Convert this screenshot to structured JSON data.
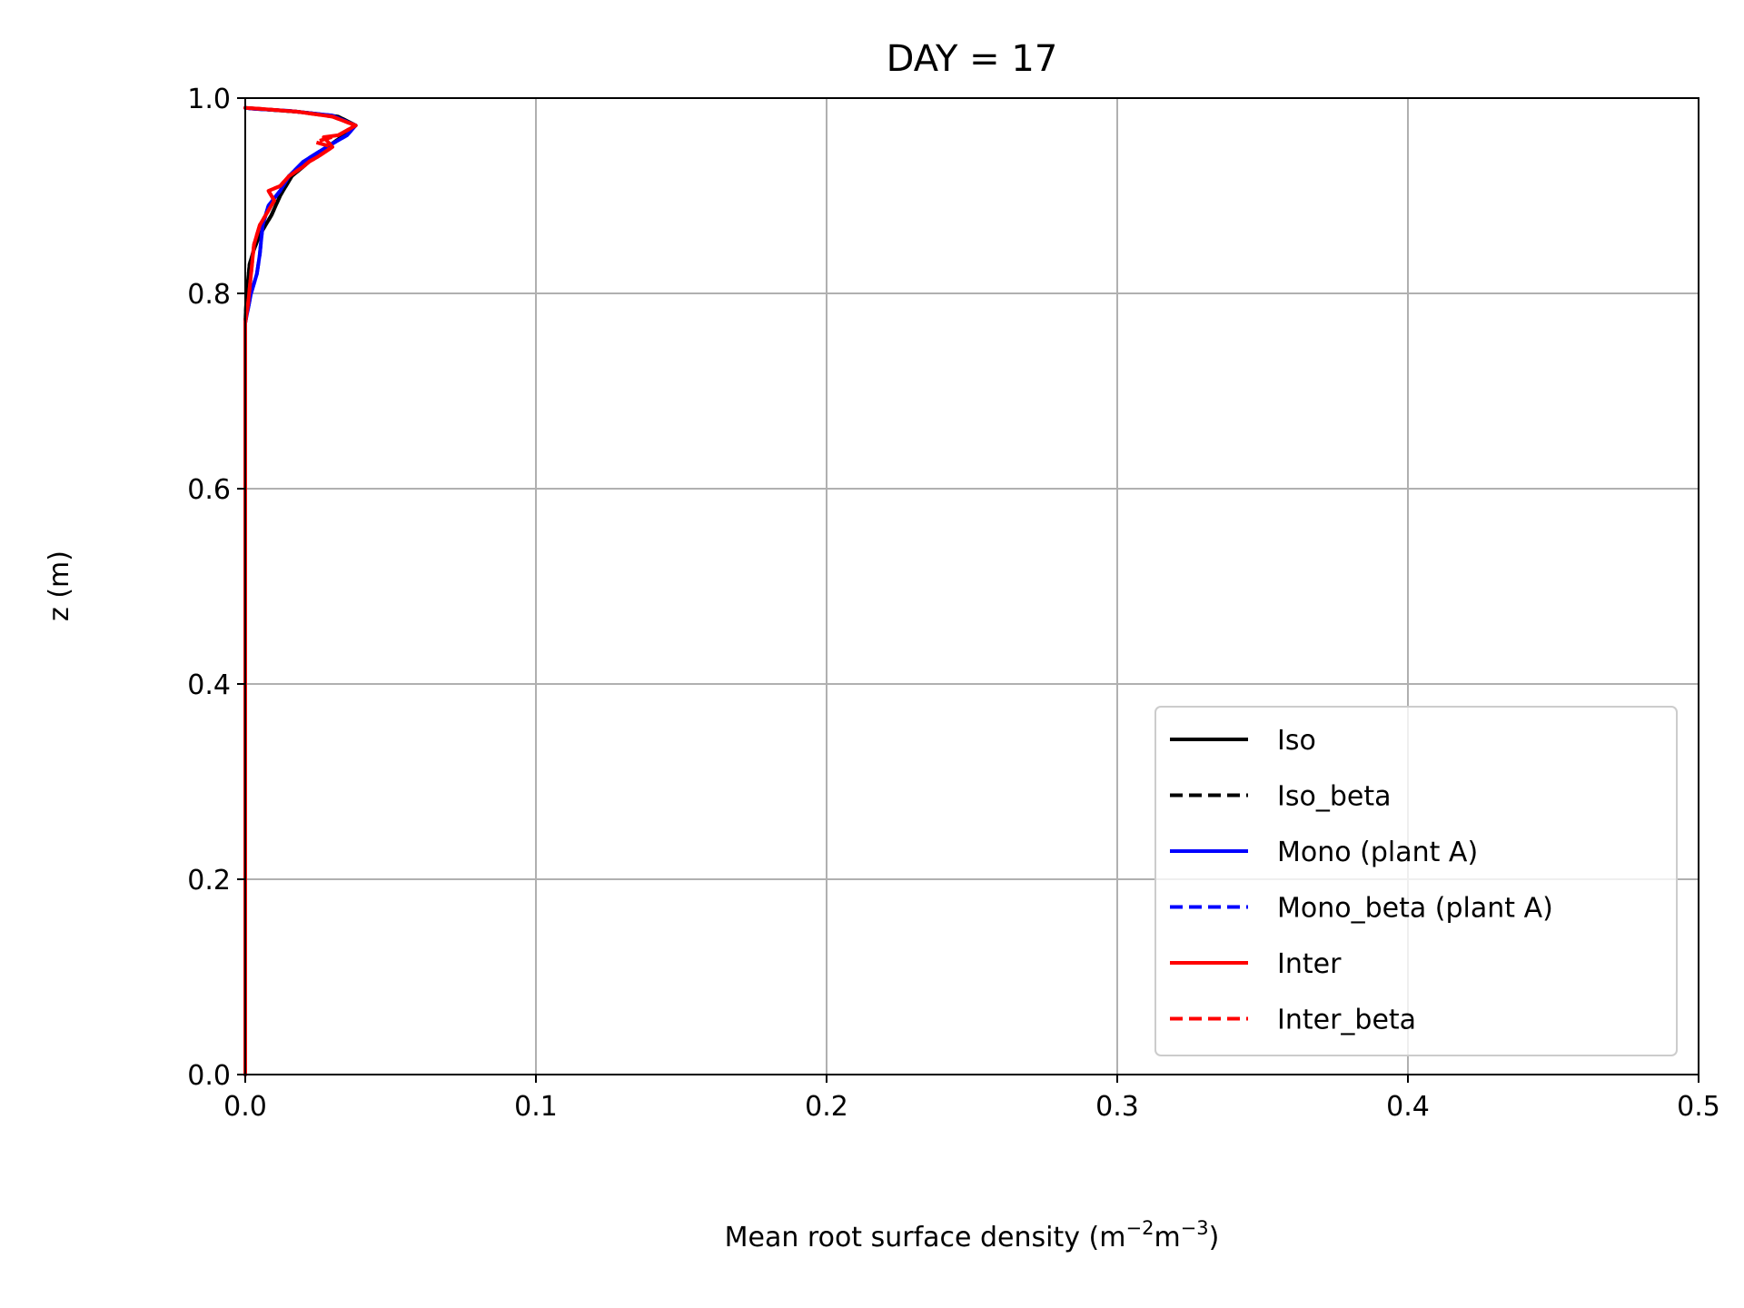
{
  "chart_data": {
    "type": "line",
    "title": "DAY = 17",
    "xlabel": "Mean root surface density (m",
    "xlabel_sup1": "−2",
    "xlabel_mid": "m",
    "xlabel_sup2": "−3",
    "xlabel_end": ")",
    "ylabel": "z (m)",
    "xlim": [
      0.0,
      0.5
    ],
    "ylim": [
      0.0,
      1.0
    ],
    "xticks": [
      "0.0",
      "0.1",
      "0.2",
      "0.3",
      "0.4",
      "0.5"
    ],
    "yticks": [
      "0.0",
      "0.2",
      "0.4",
      "0.6",
      "0.8",
      "1.0"
    ],
    "grid": true,
    "legend_position": "lower-right",
    "series": [
      {
        "name": "Iso",
        "color": "#000000",
        "dash": "solid",
        "x": [
          0.0,
          0.0,
          0.0005,
          0.0015,
          0.003,
          0.005,
          0.009,
          0.012,
          0.016,
          0.02,
          0.026,
          0.033,
          0.038,
          0.032,
          0.018,
          0.004,
          0.0
        ],
        "y": [
          0.0,
          0.77,
          0.8,
          0.83,
          0.845,
          0.86,
          0.88,
          0.9,
          0.92,
          0.93,
          0.945,
          0.96,
          0.972,
          0.981,
          0.986,
          0.989,
          0.99
        ]
      },
      {
        "name": "Iso_beta",
        "color": "#000000",
        "dash": "dashed",
        "x": [
          0.0,
          0.0,
          0.0005,
          0.0015,
          0.003,
          0.005,
          0.009,
          0.012,
          0.016,
          0.02,
          0.026,
          0.033,
          0.038,
          0.032,
          0.018,
          0.004,
          0.0
        ],
        "y": [
          0.0,
          0.77,
          0.8,
          0.83,
          0.845,
          0.86,
          0.88,
          0.9,
          0.92,
          0.93,
          0.945,
          0.96,
          0.972,
          0.981,
          0.986,
          0.989,
          0.99
        ]
      },
      {
        "name": "Mono (plant A)",
        "color": "#0000ff",
        "dash": "solid",
        "x": [
          0.0,
          0.0,
          0.002,
          0.004,
          0.005,
          0.006,
          0.008,
          0.012,
          0.015,
          0.02,
          0.028,
          0.035,
          0.038,
          0.03,
          0.015,
          0.003,
          0.0
        ],
        "y": [
          0.0,
          0.77,
          0.8,
          0.82,
          0.84,
          0.87,
          0.89,
          0.905,
          0.92,
          0.935,
          0.95,
          0.962,
          0.972,
          0.982,
          0.987,
          0.989,
          0.99
        ]
      },
      {
        "name": "Mono_beta (plant A)",
        "color": "#0000ff",
        "dash": "dashed",
        "x": [
          0.0,
          0.0,
          0.002,
          0.004,
          0.005,
          0.006,
          0.008,
          0.012,
          0.015,
          0.02,
          0.028,
          0.035,
          0.038,
          0.03,
          0.015,
          0.003,
          0.0
        ],
        "y": [
          0.0,
          0.77,
          0.8,
          0.82,
          0.84,
          0.87,
          0.89,
          0.905,
          0.92,
          0.935,
          0.95,
          0.962,
          0.972,
          0.982,
          0.987,
          0.989,
          0.99
        ]
      },
      {
        "name": "Inter",
        "color": "#ff0000",
        "dash": "solid",
        "x": [
          0.0,
          0.0,
          0.001,
          0.002,
          0.003,
          0.005,
          0.008,
          0.01,
          0.008,
          0.012,
          0.015,
          0.02,
          0.022,
          0.025,
          0.03,
          0.027,
          0.032,
          0.038,
          0.03,
          0.018,
          0.005,
          0.0
        ],
        "y": [
          0.0,
          0.77,
          0.79,
          0.82,
          0.85,
          0.87,
          0.885,
          0.895,
          0.905,
          0.91,
          0.92,
          0.93,
          0.935,
          0.94,
          0.95,
          0.96,
          0.962,
          0.972,
          0.981,
          0.986,
          0.989,
          0.99
        ]
      },
      {
        "name": "Inter_beta",
        "color": "#ff0000",
        "dash": "dashed",
        "x": [
          0.0,
          0.0,
          0.001,
          0.002,
          0.003,
          0.005,
          0.008,
          0.01,
          0.008,
          0.012,
          0.015,
          0.02,
          0.022,
          0.025,
          0.03,
          0.024,
          0.032,
          0.038,
          0.03,
          0.018,
          0.005,
          0.0
        ],
        "y": [
          0.0,
          0.77,
          0.79,
          0.82,
          0.85,
          0.87,
          0.885,
          0.895,
          0.905,
          0.91,
          0.92,
          0.93,
          0.935,
          0.94,
          0.95,
          0.955,
          0.962,
          0.972,
          0.981,
          0.986,
          0.989,
          0.99
        ]
      }
    ]
  }
}
